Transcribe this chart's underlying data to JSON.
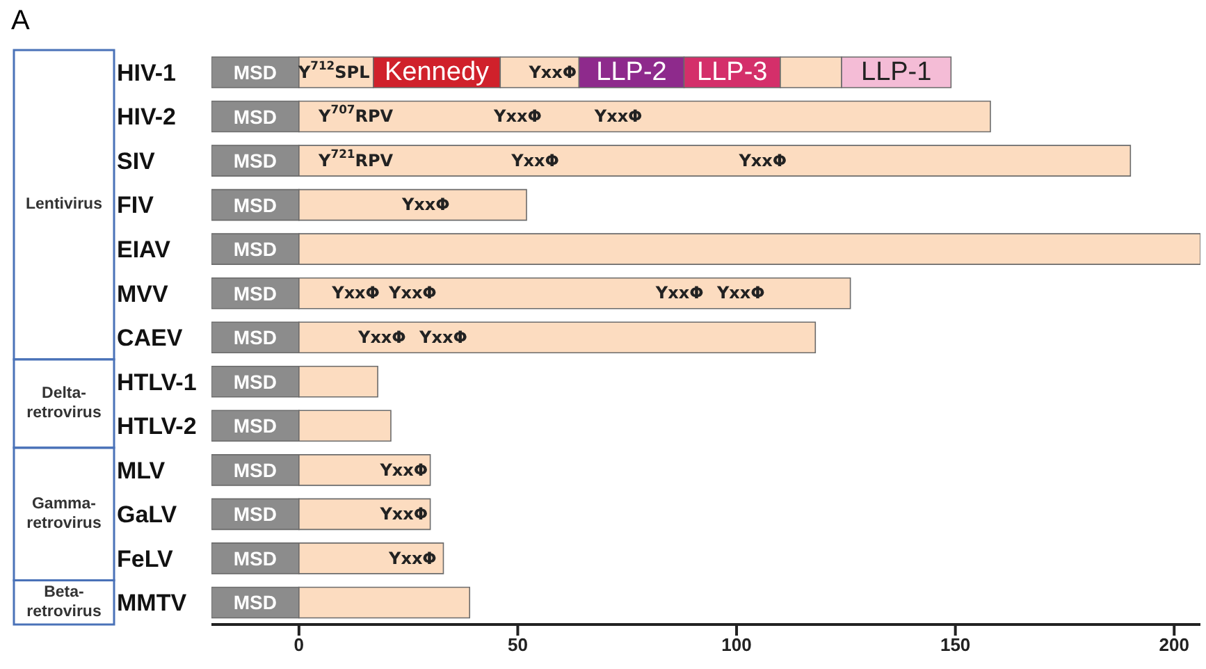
{
  "chart_data": {
    "type": "bar",
    "orientation": "horizontal",
    "stacked": true,
    "title": "A",
    "categories": [
      "HIV-1",
      "HIV-2",
      "SIV",
      "FIV",
      "EIAV",
      "MVV",
      "CAEV",
      "HTLV-1",
      "HTLV-2",
      "MLV",
      "GaLV",
      "FeLV",
      "MMTV"
    ],
    "series": [
      {
        "name": "MSD",
        "color": "#8c8c8c",
        "values": [
          -20,
          -20,
          -20,
          -20,
          -20,
          -20,
          -20,
          -20,
          -20,
          -20,
          -20,
          -20,
          -20
        ]
      },
      {
        "color": "#fcdcc0",
        "values": [
          17,
          158,
          190,
          52,
          206,
          126,
          118,
          18,
          21,
          30,
          30,
          33,
          39
        ]
      },
      {
        "name": "Kennedy",
        "color": "#d0212b",
        "values": [
          29,
          null,
          null,
          null,
          null,
          null,
          null,
          null,
          null,
          null,
          null,
          null,
          null
        ]
      },
      {
        "color": "#fcdcc0",
        "values": [
          18,
          null,
          null,
          null,
          null,
          null,
          null,
          null,
          null,
          null,
          null,
          null,
          null
        ]
      },
      {
        "name": "LLP-2",
        "color": "#8e2a8c",
        "values": [
          24,
          null,
          null,
          null,
          null,
          null,
          null,
          null,
          null,
          null,
          null,
          null,
          null
        ]
      },
      {
        "name": "LLP-3",
        "color": "#d42f6a",
        "values": [
          22,
          null,
          null,
          null,
          null,
          null,
          null,
          null,
          null,
          null,
          null,
          null,
          null
        ]
      },
      {
        "color": "#fcdcc0",
        "values": [
          14,
          null,
          null,
          null,
          null,
          null,
          null,
          null,
          null,
          null,
          null,
          null,
          null
        ]
      },
      {
        "name": "LLP-1",
        "color": "#f4bcd6",
        "values": [
          25,
          null,
          null,
          null,
          null,
          null,
          null,
          null,
          null,
          null,
          null,
          null,
          null
        ]
      }
    ],
    "xlim": [
      -20,
      206
    ],
    "xticks": [
      0,
      50,
      100,
      150,
      200
    ],
    "annotations": [
      "Lentivirus",
      "Delta-retrovirus",
      "Gamma-retrovirus",
      "Beta-retrovirus",
      {
        "text": "Y$^{712}$SPL",
        "x": 8,
        "y": "HIV-1"
      },
      {
        "text": "YxxΦ",
        "x": 58,
        "y": "HIV-1"
      },
      {
        "text": "Y$^{707}$RPV",
        "x": 13,
        "y": "HIV-2"
      },
      {
        "text": "YxxΦ",
        "x": 50,
        "y": "HIV-2"
      },
      {
        "text": "YxxΦ",
        "x": 73,
        "y": "HIV-2"
      },
      {
        "text": "Y$^{721}$RPV",
        "x": 13,
        "y": "SIV"
      },
      {
        "text": "YxxΦ",
        "x": 54,
        "y": "SIV"
      },
      {
        "text": "YxxΦ",
        "x": 106,
        "y": "SIV"
      },
      {
        "text": "YxxΦ",
        "x": 29,
        "y": "FIV"
      },
      {
        "text": "YxxΦ",
        "x": 13,
        "y": "MVV"
      },
      {
        "text": "YxxΦ",
        "x": 26,
        "y": "MVV"
      },
      {
        "text": "YxxΦ",
        "x": 87,
        "y": "MVV"
      },
      {
        "text": "YxxΦ",
        "x": 101,
        "y": "MVV"
      },
      {
        "text": "YxxΦ",
        "x": 19,
        "y": "CAEV"
      },
      {
        "text": "YxxΦ",
        "x": 33,
        "y": "CAEV"
      },
      {
        "text": "YxxΦ",
        "x": 24,
        "y": "MLV"
      },
      {
        "text": "YxxΦ",
        "x": 24,
        "y": "GaLV"
      },
      {
        "text": "YxxΦ",
        "x": 26,
        "y": "FeLV"
      }
    ]
  }
}
